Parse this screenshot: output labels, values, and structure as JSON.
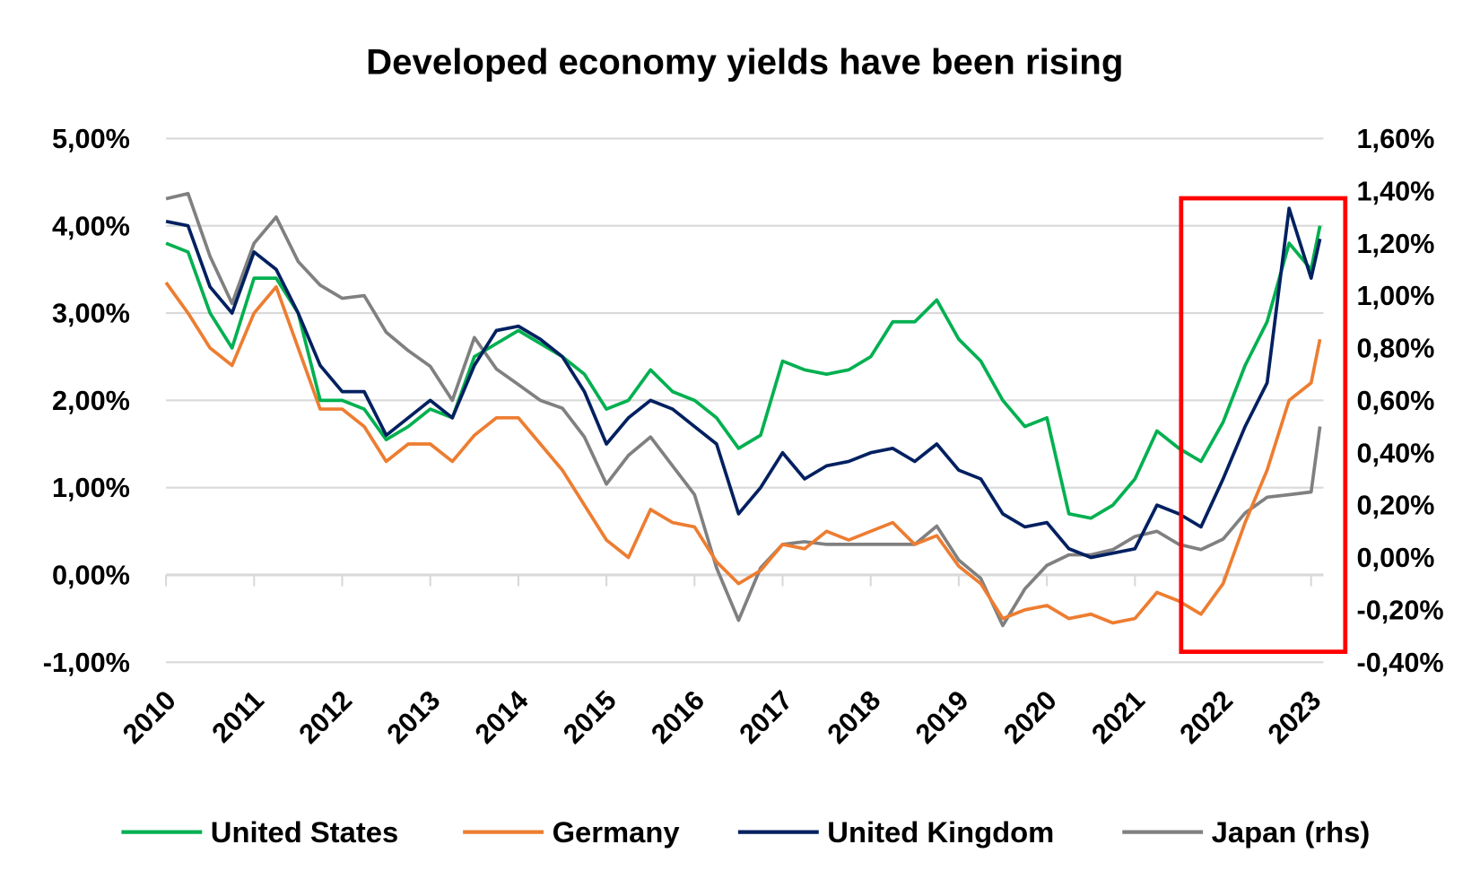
{
  "chart_data": {
    "type": "line",
    "title": "Developed economy yields have been rising",
    "xlabel": "",
    "ylabel": "",
    "x_ticks": [
      "2010",
      "2011",
      "2012",
      "2013",
      "2014",
      "2015",
      "2016",
      "2017",
      "2018",
      "2019",
      "2020",
      "2021",
      "2022",
      "2023"
    ],
    "y_left": {
      "ticks": [
        "5,00%",
        "4,00%",
        "3,00%",
        "2,00%",
        "1,00%",
        "0,00%",
        "-1,00%"
      ],
      "range": [
        -1,
        5
      ]
    },
    "y_right": {
      "ticks": [
        "1,60%",
        "1,40%",
        "1,20%",
        "1,00%",
        "0,80%",
        "0,60%",
        "0,40%",
        "0,20%",
        "0,00%",
        "-0,20%",
        "-0,40%"
      ],
      "range": [
        -0.4,
        1.6
      ]
    },
    "grid": "horizontal",
    "legend": "bottom",
    "highlight_box": {
      "x_range": [
        2021.58,
        2023.45
      ],
      "color": "#ff0000"
    },
    "x": [
      2010,
      2010.25,
      2010.5,
      2010.75,
      2011,
      2011.25,
      2011.5,
      2011.75,
      2012,
      2012.25,
      2012.5,
      2012.75,
      2013,
      2013.25,
      2013.5,
      2013.75,
      2014,
      2014.25,
      2014.5,
      2014.75,
      2015,
      2015.25,
      2015.5,
      2015.75,
      2016,
      2016.25,
      2016.5,
      2016.75,
      2017,
      2017.25,
      2017.5,
      2017.75,
      2018,
      2018.25,
      2018.5,
      2018.75,
      2019,
      2019.25,
      2019.5,
      2019.75,
      2020,
      2020.25,
      2020.5,
      2020.75,
      2021,
      2021.25,
      2021.5,
      2021.75,
      2022,
      2022.25,
      2022.5,
      2022.75,
      2023,
      2023.1
    ],
    "series": [
      {
        "name": "United States",
        "axis": "left",
        "color": "#00b050",
        "values": [
          3.8,
          3.7,
          3.0,
          2.6,
          3.4,
          3.4,
          3.0,
          2.0,
          2.0,
          1.9,
          1.55,
          1.7,
          1.9,
          1.8,
          2.5,
          2.65,
          2.8,
          2.65,
          2.5,
          2.3,
          1.9,
          2.0,
          2.35,
          2.1,
          2.0,
          1.8,
          1.45,
          1.6,
          2.45,
          2.35,
          2.3,
          2.35,
          2.5,
          2.9,
          2.9,
          3.15,
          2.7,
          2.45,
          2.0,
          1.7,
          1.8,
          0.7,
          0.65,
          0.8,
          1.1,
          1.65,
          1.45,
          1.3,
          1.75,
          2.4,
          2.9,
          3.8,
          3.5,
          4.0
        ]
      },
      {
        "name": "Germany",
        "axis": "left",
        "color": "#ed7d31",
        "values": [
          3.35,
          3.0,
          2.6,
          2.4,
          3.0,
          3.3,
          2.6,
          1.9,
          1.9,
          1.7,
          1.3,
          1.5,
          1.5,
          1.3,
          1.6,
          1.8,
          1.8,
          1.5,
          1.2,
          0.8,
          0.4,
          0.2,
          0.75,
          0.6,
          0.55,
          0.15,
          -0.1,
          0.05,
          0.35,
          0.3,
          0.5,
          0.4,
          0.5,
          0.6,
          0.35,
          0.45,
          0.1,
          -0.1,
          -0.5,
          -0.4,
          -0.35,
          -0.5,
          -0.45,
          -0.55,
          -0.5,
          -0.2,
          -0.3,
          -0.45,
          -0.1,
          0.6,
          1.2,
          2.0,
          2.2,
          2.7
        ]
      },
      {
        "name": "United Kingdom",
        "axis": "left",
        "color": "#002060",
        "values": [
          4.05,
          4.0,
          3.3,
          3.0,
          3.7,
          3.5,
          3.0,
          2.4,
          2.1,
          2.1,
          1.6,
          1.8,
          2.0,
          1.8,
          2.4,
          2.8,
          2.85,
          2.7,
          2.5,
          2.1,
          1.5,
          1.8,
          2.0,
          1.9,
          1.7,
          1.5,
          0.7,
          1.0,
          1.4,
          1.1,
          1.25,
          1.3,
          1.4,
          1.45,
          1.3,
          1.5,
          1.2,
          1.1,
          0.7,
          0.55,
          0.6,
          0.3,
          0.2,
          0.25,
          0.3,
          0.8,
          0.7,
          0.55,
          1.1,
          1.7,
          2.2,
          4.2,
          3.4,
          3.85
        ]
      },
      {
        "name": "Japan (rhs)",
        "axis": "right",
        "color": "#808080",
        "values": [
          1.37,
          1.39,
          1.15,
          0.97,
          1.2,
          1.3,
          1.13,
          1.04,
          0.99,
          1.0,
          0.86,
          0.79,
          0.73,
          0.6,
          0.84,
          0.72,
          0.66,
          0.6,
          0.57,
          0.46,
          0.28,
          0.39,
          0.46,
          0.35,
          0.24,
          -0.04,
          -0.24,
          -0.04,
          0.05,
          0.06,
          0.05,
          0.05,
          0.05,
          0.05,
          0.05,
          0.12,
          -0.01,
          -0.08,
          -0.26,
          -0.12,
          -0.03,
          0.01,
          0.01,
          0.03,
          0.08,
          0.1,
          0.05,
          0.03,
          0.07,
          0.17,
          0.23,
          0.24,
          0.25,
          0.5
        ]
      }
    ]
  }
}
